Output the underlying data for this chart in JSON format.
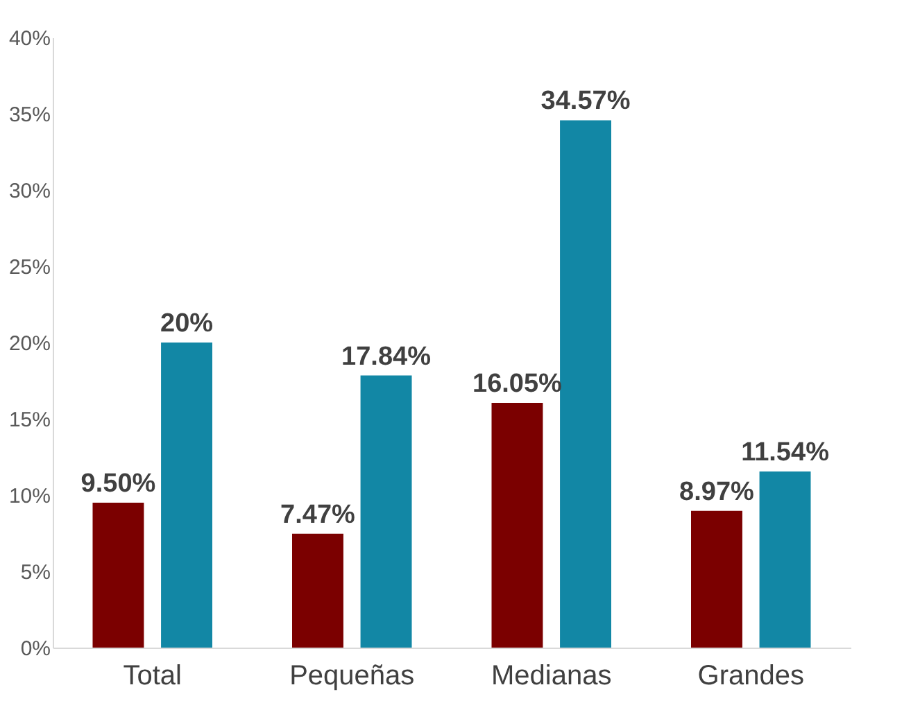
{
  "chart_data": {
    "type": "bar",
    "categories": [
      "Total",
      "Pequeñas",
      "Medianas",
      "Grandes"
    ],
    "series": [
      {
        "color": "#7b0000",
        "values": [
          9.5,
          7.47,
          16.05,
          8.97
        ],
        "value_labels": [
          "9.50%",
          "7.47%",
          "16.05%",
          "8.97%"
        ]
      },
      {
        "color": "#1287a5",
        "values": [
          20,
          17.84,
          34.57,
          11.54
        ],
        "value_labels": [
          "20%",
          "17.84%",
          "34.57%",
          "11.54%"
        ]
      }
    ],
    "ylim": [
      0,
      40
    ],
    "yticks": [
      {
        "value": 0,
        "label": "0%"
      },
      {
        "value": 5,
        "label": "5%"
      },
      {
        "value": 10,
        "label": "10%"
      },
      {
        "value": 15,
        "label": "15%"
      },
      {
        "value": 20,
        "label": "20%"
      },
      {
        "value": 25,
        "label": "25%"
      },
      {
        "value": 30,
        "label": "30%"
      },
      {
        "value": 35,
        "label": "35%"
      },
      {
        "value": 40,
        "label": "40%"
      }
    ],
    "grid": false,
    "legend": false
  }
}
